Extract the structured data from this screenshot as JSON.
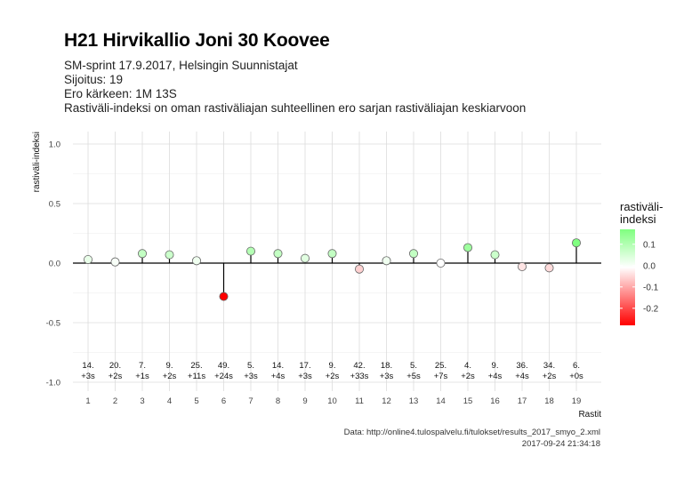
{
  "title": "H21 Hirvikallio Joni 30 Koovee",
  "subtitle_lines": [
    "SM-sprint 17.9.2017, Helsingin Suunnistajat",
    "Sijoitus: 19",
    "Ero kärkeen: 1M 13S",
    "Rastiväli-indeksi on oman rastiväliajan suhteellinen ero sarjan rastiväliajan keskiarvoon"
  ],
  "caption_lines": [
    "Data: http://online4.tulospalvelu.fi/tulokset/results_2017_smyo_2.xml",
    "2017-09-24 21:34:18"
  ],
  "chart_data": {
    "type": "lollipop",
    "xlabel": "Rastit",
    "ylabel": "rastiväli-indeksi",
    "ylim": [
      -1.0,
      1.0
    ],
    "yticks": [
      1.0,
      0.5,
      0.0,
      -0.5,
      -1.0
    ],
    "ytick_labels": [
      "1.0",
      "0.5",
      "0.0",
      "-0.5",
      "-1.0"
    ],
    "grid": true,
    "legend_position": "right",
    "legend": {
      "title_lines": [
        "rastiväli-",
        "indeksi"
      ],
      "ticks": [
        0.1,
        0.0,
        -0.1,
        -0.2
      ],
      "tick_labels": [
        "0.1",
        "0.0",
        "-0.1",
        "-0.2"
      ],
      "range": [
        -0.28,
        0.17
      ],
      "colors": {
        "low": "#ff0000",
        "mid": "#ffffff",
        "high": "#80ff80"
      }
    },
    "categories": [
      "1",
      "2",
      "3",
      "4",
      "5",
      "6",
      "7",
      "8",
      "9",
      "10",
      "11",
      "12",
      "13",
      "14",
      "15",
      "16",
      "17",
      "18",
      "19"
    ],
    "values": [
      0.03,
      0.01,
      0.08,
      0.07,
      0.02,
      -0.28,
      0.1,
      0.08,
      0.04,
      0.08,
      -0.05,
      0.02,
      0.08,
      0.0,
      0.13,
      0.07,
      -0.03,
      -0.04,
      0.17
    ],
    "ranks": [
      "14.",
      "20.",
      "7.",
      "9.",
      "25.",
      "49.",
      "5.",
      "14.",
      "17.",
      "9.",
      "42.",
      "18.",
      "5.",
      "25.",
      "4.",
      "9.",
      "36.",
      "34.",
      "6."
    ],
    "diffs": [
      "+3s",
      "+2s",
      "+1s",
      "+2s",
      "+11s",
      "+24s",
      "+3s",
      "+4s",
      "+3s",
      "+2s",
      "+33s",
      "+3s",
      "+5s",
      "+7s",
      "+2s",
      "+4s",
      "+4s",
      "+2s",
      "+0s"
    ]
  }
}
